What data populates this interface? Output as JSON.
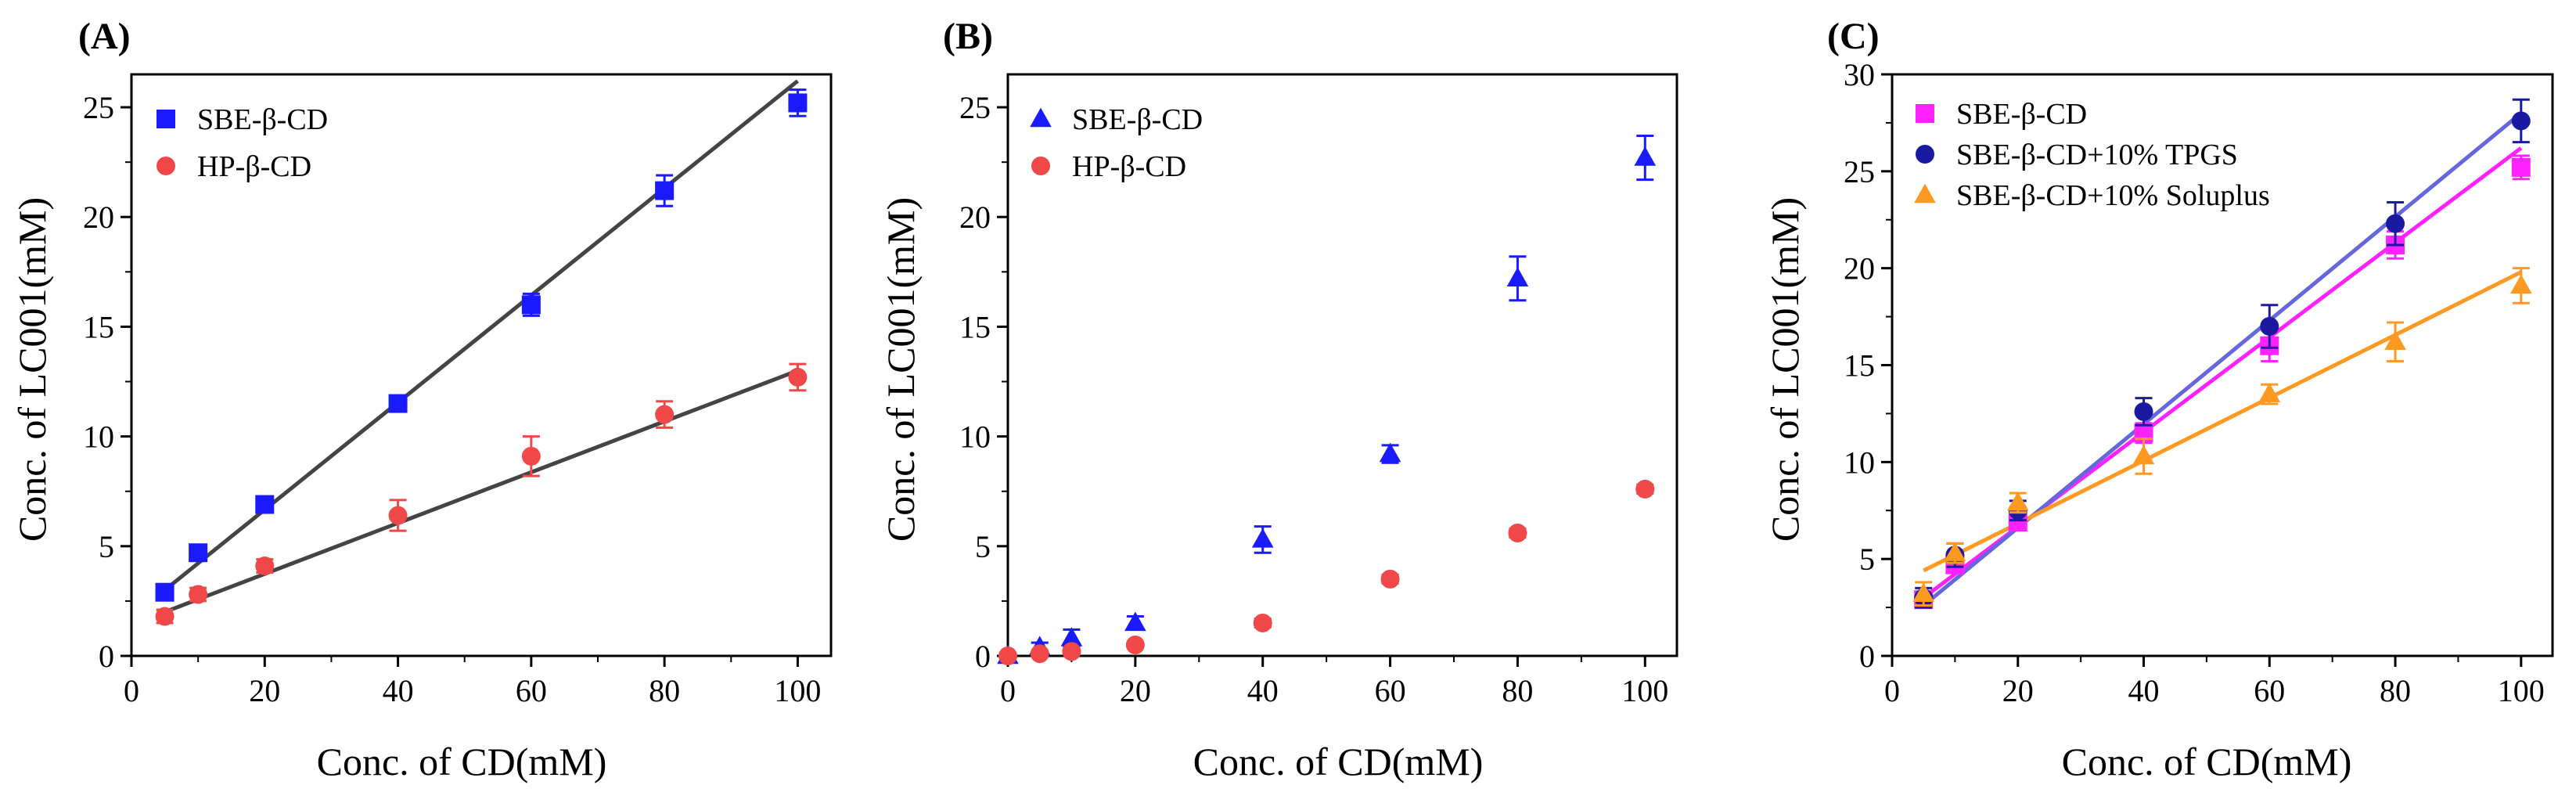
{
  "chart_data": [
    {
      "type": "scatter",
      "panel_label": "(A)",
      "xlabel": "Conc. of CD(mM)",
      "ylabel": "Conc. of LC001(mM)",
      "xlim": [
        0,
        105
      ],
      "ylim": [
        0,
        26.5
      ],
      "xticks": [
        0,
        20,
        40,
        60,
        80,
        100
      ],
      "yticks": [
        0,
        5,
        10,
        15,
        20,
        25
      ],
      "legend_position": "top-left",
      "series": [
        {
          "name": "SBE-β-CD",
          "marker": "square",
          "color": "#1a1aff",
          "x": [
            5,
            10,
            20,
            40,
            60,
            80,
            100
          ],
          "y": [
            2.9,
            4.7,
            6.9,
            11.5,
            16.0,
            21.2,
            25.2
          ],
          "err": [
            0.3,
            0.3,
            0.3,
            0.3,
            0.5,
            0.7,
            0.6
          ],
          "fit": {
            "x": [
              5,
              100
            ],
            "y": [
              3.0,
              26.2
            ],
            "color": "#444444"
          }
        },
        {
          "name": "HP-β-CD",
          "marker": "circle",
          "color": "#f04848",
          "x": [
            5,
            10,
            20,
            40,
            60,
            80,
            100
          ],
          "y": [
            1.8,
            2.8,
            4.1,
            6.4,
            9.1,
            11.0,
            12.7
          ],
          "err": [
            0.3,
            0.3,
            0.3,
            0.7,
            0.9,
            0.6,
            0.6
          ],
          "fit": {
            "x": [
              5,
              100
            ],
            "y": [
              2.0,
              13.0
            ],
            "color": "#444444"
          }
        }
      ]
    },
    {
      "type": "scatter",
      "panel_label": "(B)",
      "xlabel": "Conc. of CD(mM)",
      "ylabel": "Conc. of LC001(mM)",
      "xlim": [
        0,
        105
      ],
      "ylim": [
        0,
        26.5
      ],
      "xticks": [
        0,
        20,
        40,
        60,
        80,
        100
      ],
      "yticks": [
        0,
        5,
        10,
        15,
        20,
        25
      ],
      "legend_position": "top-left",
      "series": [
        {
          "name": "SBE-β-CD",
          "marker": "triangle",
          "color": "#1a1aff",
          "x": [
            0,
            5,
            10,
            20,
            40,
            60,
            80,
            100
          ],
          "y": [
            0.0,
            0.4,
            0.8,
            1.5,
            5.3,
            9.2,
            17.2,
            22.7
          ],
          "err": [
            0,
            0.2,
            0.4,
            0.3,
            0.6,
            0.4,
            1.0,
            1.0
          ]
        },
        {
          "name": "HP-β-CD",
          "marker": "circle",
          "color": "#f04848",
          "x": [
            0,
            5,
            10,
            20,
            40,
            60,
            80,
            100
          ],
          "y": [
            0.0,
            0.1,
            0.2,
            0.5,
            1.5,
            3.5,
            5.6,
            7.6
          ],
          "err": [
            0,
            0,
            0.1,
            0.1,
            0.2,
            0.2,
            0.2,
            0.2
          ]
        }
      ]
    },
    {
      "type": "scatter",
      "panel_label": "(C)",
      "xlabel": "Conc. of CD(mM)",
      "ylabel": "Conc. of LC001(mM)",
      "xlim": [
        0,
        105
      ],
      "ylim": [
        0,
        30
      ],
      "xticks": [
        0,
        20,
        40,
        60,
        80,
        100
      ],
      "yticks": [
        0,
        5,
        10,
        15,
        20,
        25,
        30
      ],
      "legend_position": "top-left",
      "series": [
        {
          "name": "SBE-β-CD",
          "marker": "square",
          "color": "#ff22ff",
          "x": [
            5,
            10,
            20,
            40,
            60,
            80,
            100
          ],
          "y": [
            2.9,
            4.7,
            6.9,
            11.5,
            16.0,
            21.2,
            25.2
          ],
          "err": [
            0.3,
            0.4,
            0.3,
            0.5,
            0.8,
            0.7,
            0.6
          ],
          "fit": {
            "x": [
              5,
              100
            ],
            "y": [
              3.0,
              26.2
            ],
            "color": "#ff22ff"
          }
        },
        {
          "name": "SBE-β-CD+10% TPGS",
          "marker": "circle",
          "color": "#1a1aa0",
          "x": [
            5,
            10,
            20,
            40,
            60,
            80,
            100
          ],
          "y": [
            3.0,
            5.2,
            7.5,
            12.6,
            17.0,
            22.3,
            27.6
          ],
          "err": [
            0.5,
            0.6,
            0.5,
            0.7,
            1.1,
            1.1,
            1.1
          ],
          "fit": {
            "x": [
              5,
              100
            ],
            "y": [
              2.6,
              28.0
            ],
            "color": "#6666dd"
          }
        },
        {
          "name": "SBE-β-CD+10% Soluplus",
          "marker": "triangle",
          "color": "#ff9922",
          "x": [
            5,
            10,
            20,
            40,
            60,
            80,
            100
          ],
          "y": [
            3.2,
            5.3,
            7.9,
            10.3,
            13.5,
            16.2,
            19.1
          ],
          "err": [
            0.6,
            0.5,
            0.5,
            0.9,
            0.5,
            1.0,
            0.9
          ],
          "fit": {
            "x": [
              5,
              100
            ],
            "y": [
              4.4,
              19.8
            ],
            "color": "#ff9922"
          }
        }
      ]
    }
  ]
}
